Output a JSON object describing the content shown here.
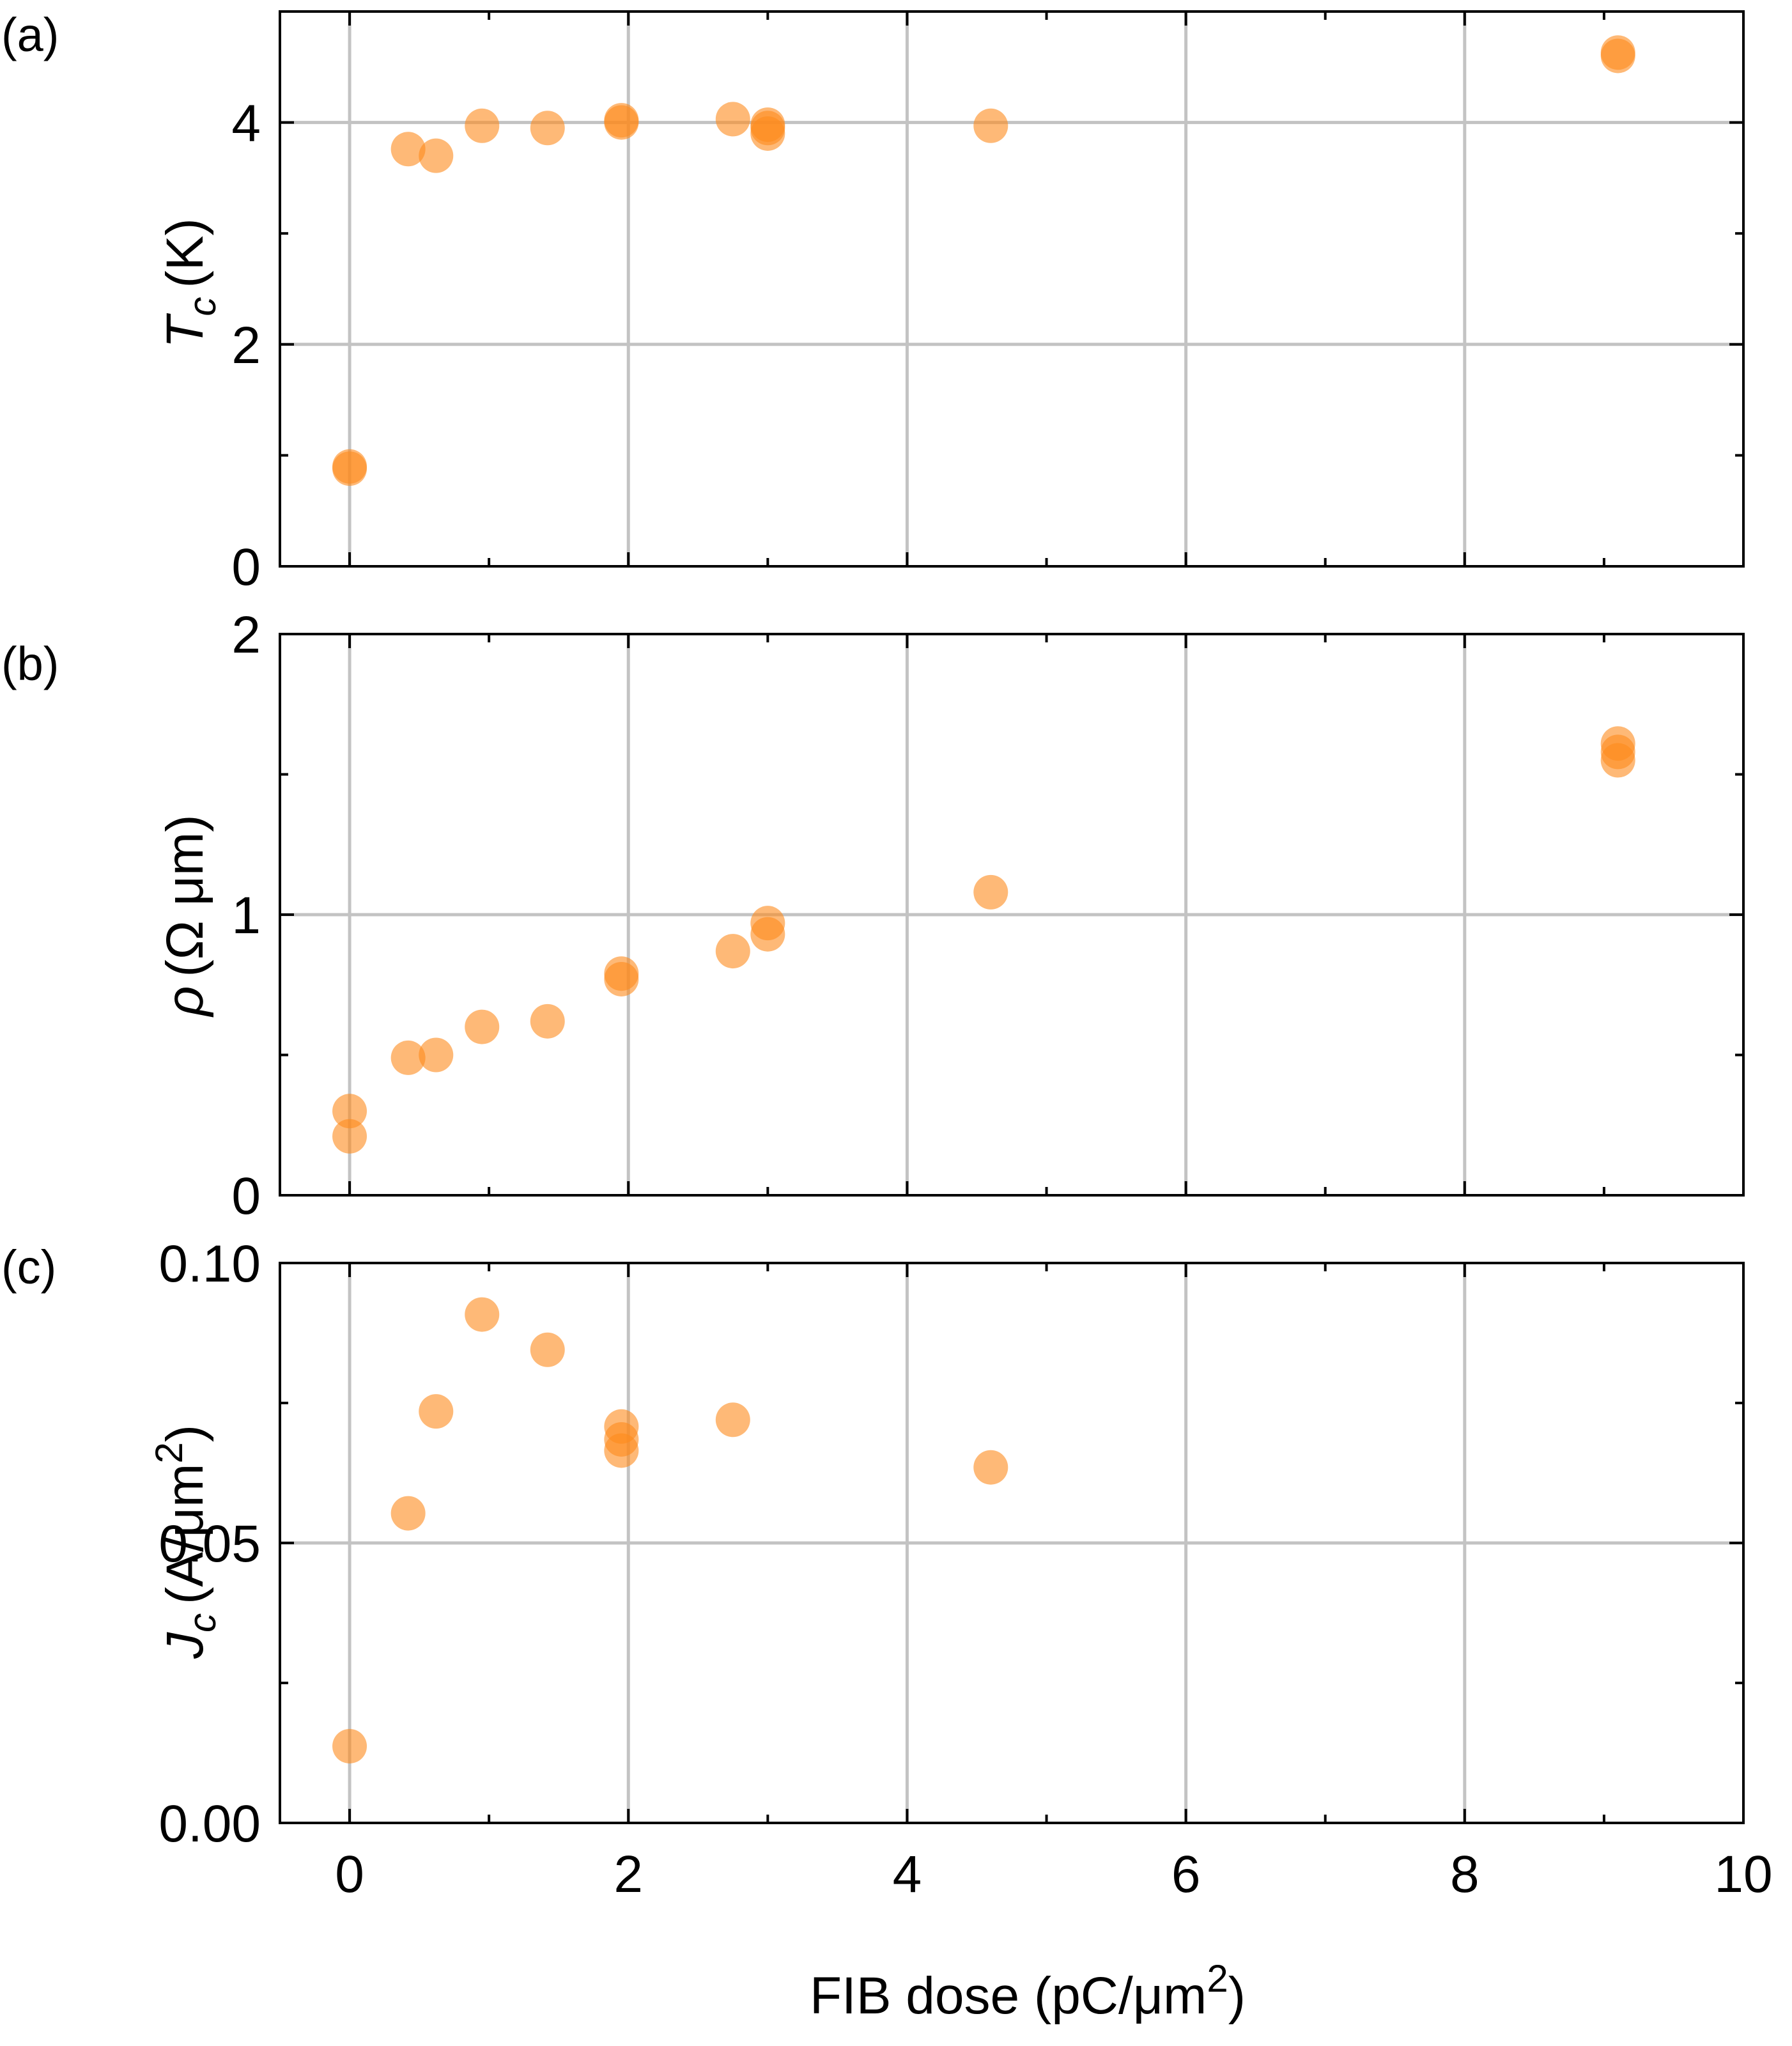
{
  "chart_data": [
    {
      "panel": "(a)",
      "type": "scatter",
      "ylabel": {
        "symbol": "T",
        "subscript": "c",
        "unit": "(K)"
      },
      "ylim": [
        0,
        5
      ],
      "yticks": [
        "0",
        "2",
        "4"
      ],
      "ytick_values": [
        0,
        2,
        4
      ],
      "grid_y": [
        2,
        4
      ],
      "minor_ticks_y": [
        1,
        3
      ],
      "x": [
        0.0,
        0.0,
        0.42,
        0.62,
        0.95,
        1.42,
        1.95,
        1.95,
        2.75,
        3.0,
        3.0,
        3.0,
        4.6,
        9.1,
        9.1
      ],
      "y": [
        0.88,
        0.9,
        3.76,
        3.7,
        3.97,
        3.95,
        4.0,
        4.02,
        4.03,
        3.9,
        3.95,
        3.98,
        3.97,
        4.6,
        4.63
      ]
    },
    {
      "panel": "(b)",
      "type": "scatter",
      "ylabel": {
        "symbol": "ρ",
        "unit": "(Ω μm)"
      },
      "ylim": [
        0,
        2
      ],
      "yticks": [
        "0",
        "1",
        "2"
      ],
      "ytick_values": [
        0,
        1,
        2
      ],
      "grid_y": [
        1
      ],
      "minor_ticks_y": [
        0.5,
        1.5
      ],
      "x": [
        0.0,
        0.0,
        0.42,
        0.62,
        0.95,
        1.42,
        1.95,
        1.95,
        2.75,
        3.0,
        3.0,
        4.6,
        9.1,
        9.1,
        9.1
      ],
      "y": [
        0.21,
        0.3,
        0.49,
        0.5,
        0.6,
        0.62,
        0.77,
        0.79,
        0.87,
        0.93,
        0.97,
        1.08,
        1.55,
        1.58,
        1.61
      ]
    },
    {
      "panel": "(c)",
      "type": "scatter",
      "ylabel": {
        "symbol": "J",
        "subscript": "c",
        "unit": "(A/μm",
        "superscript": "2",
        "close": ")"
      },
      "ylim": [
        0,
        0.1
      ],
      "yticks": [
        "0.00",
        "0.05",
        "0.10"
      ],
      "ytick_values": [
        0,
        0.05,
        0.1
      ],
      "grid_y": [
        0.05
      ],
      "minor_ticks_y": [
        0.025,
        0.075
      ],
      "x": [
        0.0,
        0.42,
        0.62,
        0.95,
        1.42,
        1.95,
        1.95,
        1.95,
        2.75,
        4.6
      ],
      "y": [
        0.0137,
        0.0553,
        0.0735,
        0.0908,
        0.0845,
        0.0665,
        0.0685,
        0.0708,
        0.072,
        0.0635
      ]
    }
  ],
  "x_axis": {
    "label": "FIB dose (pC/μm",
    "label_sup": "2",
    "label_close": ")",
    "xlim": [
      -0.5,
      10
    ],
    "ticks": [
      "0",
      "2",
      "4",
      "6",
      "8",
      "10"
    ],
    "tick_values": [
      0,
      2,
      4,
      6,
      8,
      10
    ],
    "grid_x": [
      0,
      2,
      4,
      6,
      8
    ],
    "minor_ticks": [
      1,
      3,
      5,
      7,
      9
    ]
  },
  "style": {
    "marker_color": "#fd8b1c",
    "marker_opacity": 0.6,
    "grid_color": "#c3c3c3",
    "axis_color": "#000000"
  }
}
